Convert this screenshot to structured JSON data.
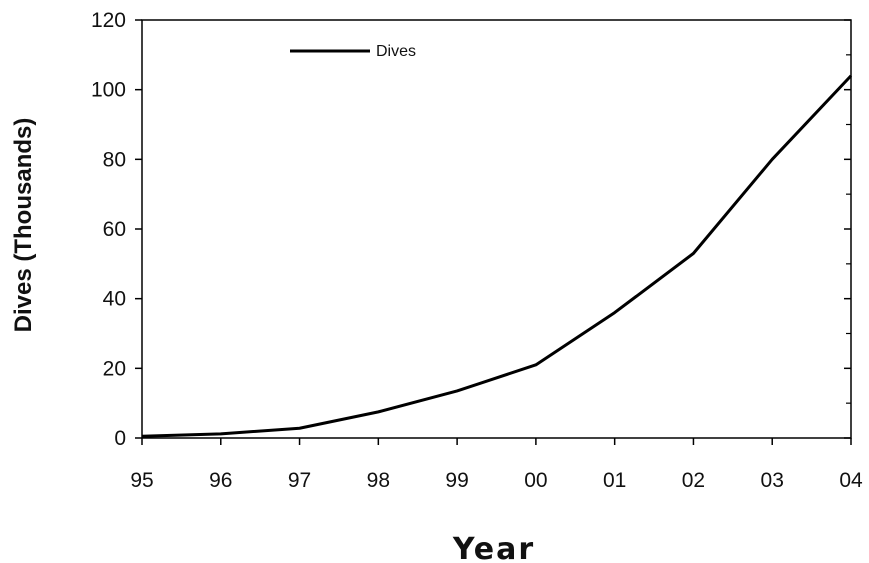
{
  "chart_data": {
    "type": "line",
    "categories": [
      "95",
      "96",
      "97",
      "98",
      "99",
      "00",
      "01",
      "02",
      "03",
      "04"
    ],
    "series": [
      {
        "name": "Dives",
        "values": [
          0.5,
          1.2,
          2.8,
          7.5,
          13.5,
          21,
          36,
          53,
          80,
          104
        ],
        "color": "#000000"
      }
    ],
    "title": "",
    "xlabel": "Year",
    "ylabel": "Dives (Thousands)",
    "ylim": [
      0,
      120
    ],
    "yticks": [
      0,
      20,
      40,
      60,
      80,
      100,
      120
    ],
    "grid": false,
    "legend_position": "top-center"
  }
}
